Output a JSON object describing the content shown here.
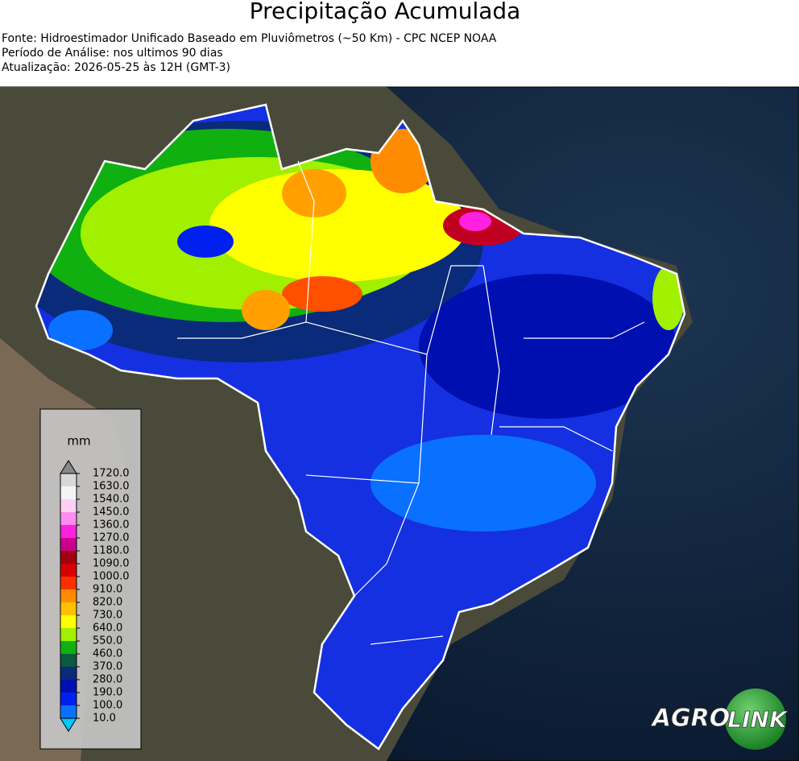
{
  "header": {
    "title": "Precipitação Acumulada",
    "lines": [
      "Fonte: Hidroestimador Unificado Baseado em Pluviômetros (~50 Km) - CPC NCEP NOAA",
      "Período de Análise: nos ultimos 90 dias",
      "Atualização: 2026-05-25 às 12H (GMT-3)"
    ]
  },
  "legend": {
    "unit": "mm",
    "labels": [
      "1720.0",
      "1630.0",
      "1540.0",
      "1450.0",
      "1360.0",
      "1270.0",
      "1180.0",
      "1090.0",
      "1000.0",
      "910.0",
      "820.0",
      "730.0",
      "640.0",
      "550.0",
      "460.0",
      "370.0",
      "280.0",
      "190.0",
      "100.0",
      "10.0"
    ],
    "colors": [
      "#d8d8d8",
      "#f4f4f4",
      "#ffd0f4",
      "#ff8cf0",
      "#ff20e0",
      "#c8008c",
      "#a00010",
      "#d80000",
      "#ff3000",
      "#ff8c00",
      "#ffc000",
      "#ffff00",
      "#a0f000",
      "#10b010",
      "#0a5a40",
      "#0a2a7a",
      "#0010b0",
      "#0020f0",
      "#0a70ff"
    ],
    "over_color": "#888888",
    "under_color": "#00c8ff"
  },
  "logo": {
    "left": "AGRO",
    "right": "LINK"
  }
}
